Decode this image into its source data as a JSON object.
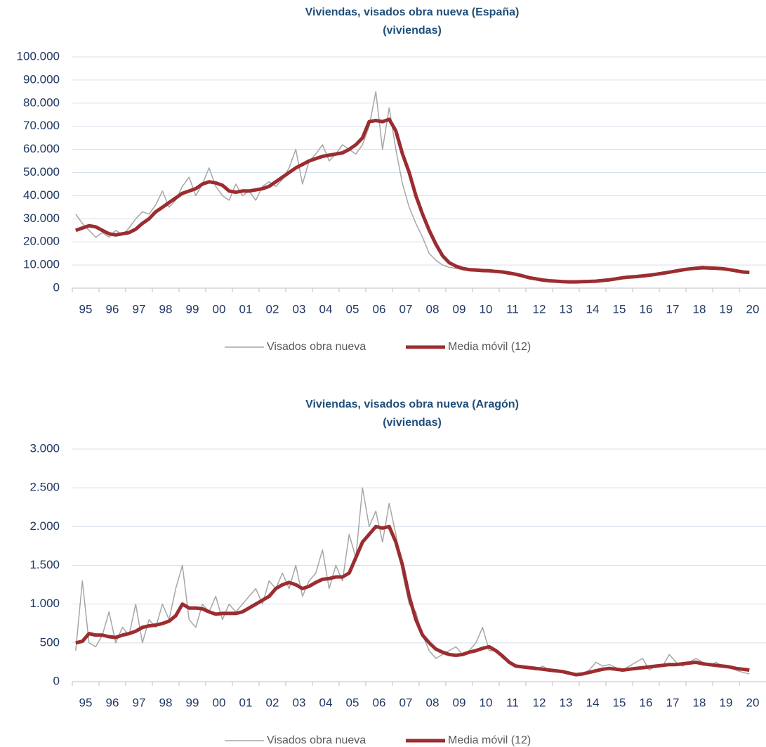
{
  "chart_data": [
    {
      "type": "line",
      "title": "Viviendas, visados obra nueva  (España)",
      "subtitle": "(viviendas)",
      "grid": true,
      "legend": "bottom",
      "ylim": [
        0,
        100000
      ],
      "yticks": [
        0,
        {
          "value": 10000,
          "label": "10.000"
        },
        {
          "value": 20000,
          "label": "20.000"
        },
        {
          "value": 30000,
          "label": "30.000"
        },
        {
          "value": 40000,
          "label": "40.000"
        },
        {
          "value": 50000,
          "label": "50.000"
        },
        {
          "value": 60000,
          "label": "60.000"
        },
        {
          "value": 70000,
          "label": "70.000"
        },
        {
          "value": 80000,
          "label": "80.000"
        },
        {
          "value": 90000,
          "label": "90.000"
        },
        {
          "value": 100000,
          "label": "100.000"
        }
      ],
      "categories": [
        "95",
        null,
        null,
        null,
        "96",
        null,
        null,
        null,
        "97",
        null,
        null,
        null,
        "98",
        null,
        null,
        null,
        "99",
        null,
        null,
        null,
        "00",
        null,
        null,
        null,
        "01",
        null,
        null,
        null,
        "02",
        null,
        null,
        null,
        "03",
        null,
        null,
        null,
        "04",
        null,
        null,
        null,
        "05",
        null,
        null,
        null,
        "06",
        null,
        null,
        null,
        "07",
        null,
        null,
        null,
        "08",
        null,
        null,
        null,
        "09",
        null,
        null,
        null,
        "10",
        null,
        null,
        null,
        "11",
        null,
        null,
        null,
        "12",
        null,
        null,
        null,
        "13",
        null,
        null,
        null,
        "14",
        null,
        null,
        null,
        "15",
        null,
        null,
        null,
        "16",
        null,
        null,
        null,
        "17",
        null,
        null,
        null,
        "18",
        null,
        null,
        null,
        "19",
        null,
        null,
        null,
        "20",
        null,
        null,
        null
      ],
      "series": [
        {
          "name": "Visados obra nueva",
          "color": "#a6a6a6",
          "values": [
            32000,
            28000,
            25000,
            22000,
            24000,
            22000,
            25000,
            23000,
            26000,
            30000,
            33000,
            32000,
            36000,
            42000,
            35000,
            38000,
            44000,
            48000,
            40000,
            45000,
            52000,
            44000,
            40000,
            38000,
            45000,
            40000,
            42000,
            38000,
            44000,
            46000,
            44000,
            47000,
            52000,
            60000,
            45000,
            55000,
            58000,
            62000,
            55000,
            58000,
            62000,
            60000,
            58000,
            62000,
            70000,
            85000,
            60000,
            78000,
            60000,
            45000,
            35000,
            28000,
            22000,
            15000,
            12000,
            10000,
            9000,
            8500,
            8000,
            8000,
            8000,
            7500,
            7500,
            7000,
            7000,
            6500,
            6000,
            5500,
            5000,
            4000,
            3500,
            3200,
            3000,
            2800,
            2700,
            2800,
            2900,
            3000,
            3200,
            3500,
            3800,
            4200,
            4500,
            5000,
            5200,
            5500,
            5800,
            6000,
            6500,
            7000,
            7500,
            8000,
            8500,
            9000,
            9500,
            9000,
            9000,
            8500,
            8000,
            7500,
            7000,
            6500,
            null,
            null
          ]
        },
        {
          "name": "Media móvil (12)",
          "color": "#9b2d30",
          "values": [
            25000,
            26000,
            27000,
            26500,
            25000,
            23500,
            23000,
            23500,
            24000,
            25500,
            28000,
            30000,
            33000,
            35000,
            37000,
            39000,
            41000,
            42000,
            43000,
            45000,
            46000,
            45500,
            44500,
            42000,
            41500,
            42000,
            42000,
            42500,
            43000,
            44000,
            46000,
            48000,
            50000,
            52000,
            53500,
            55000,
            56000,
            57000,
            57500,
            58000,
            58500,
            60000,
            62000,
            65000,
            72000,
            72500,
            72000,
            73000,
            68000,
            58000,
            50000,
            40000,
            32000,
            25000,
            19000,
            14000,
            11000,
            9500,
            8500,
            8000,
            7800,
            7600,
            7500,
            7200,
            7000,
            6500,
            6000,
            5300,
            4500,
            4000,
            3500,
            3200,
            3000,
            2800,
            2700,
            2700,
            2800,
            2900,
            3000,
            3300,
            3600,
            4000,
            4500,
            4800,
            5000,
            5300,
            5600,
            6000,
            6400,
            6900,
            7400,
            7900,
            8300,
            8600,
            8800,
            8700,
            8600,
            8400,
            8000,
            7500,
            7000,
            6800,
            null,
            null
          ]
        }
      ]
    },
    {
      "type": "line",
      "title": "Viviendas, visados obra nueva  (Aragón)",
      "subtitle": "(viviendas)",
      "grid": true,
      "legend": "bottom",
      "ylim": [
        0,
        3000
      ],
      "yticks": [
        0,
        500,
        {
          "value": 1000,
          "label": "1.000"
        },
        {
          "value": 1500,
          "label": "1.500"
        },
        {
          "value": 2000,
          "label": "2.000"
        },
        {
          "value": 2500,
          "label": "2.500"
        },
        {
          "value": 3000,
          "label": "3.000"
        }
      ],
      "categories": [
        "95",
        null,
        null,
        null,
        "96",
        null,
        null,
        null,
        "97",
        null,
        null,
        null,
        "98",
        null,
        null,
        null,
        "99",
        null,
        null,
        null,
        "00",
        null,
        null,
        null,
        "01",
        null,
        null,
        null,
        "02",
        null,
        null,
        null,
        "03",
        null,
        null,
        null,
        "04",
        null,
        null,
        null,
        "05",
        null,
        null,
        null,
        "06",
        null,
        null,
        null,
        "07",
        null,
        null,
        null,
        "08",
        null,
        null,
        null,
        "09",
        null,
        null,
        null,
        "10",
        null,
        null,
        null,
        "11",
        null,
        null,
        null,
        "12",
        null,
        null,
        null,
        "13",
        null,
        null,
        null,
        "14",
        null,
        null,
        null,
        "15",
        null,
        null,
        null,
        "16",
        null,
        null,
        null,
        "17",
        null,
        null,
        null,
        "18",
        null,
        null,
        null,
        "19",
        null,
        null,
        null,
        "20",
        null,
        null,
        null
      ],
      "series": [
        {
          "name": "Visados obra nueva",
          "color": "#a6a6a6",
          "values": [
            400,
            1300,
            500,
            450,
            600,
            900,
            500,
            700,
            600,
            1000,
            500,
            800,
            700,
            1000,
            800,
            1200,
            1500,
            800,
            700,
            1000,
            900,
            1100,
            800,
            1000,
            900,
            1000,
            1100,
            1200,
            1000,
            1300,
            1200,
            1400,
            1200,
            1500,
            1100,
            1300,
            1400,
            1700,
            1200,
            1500,
            1300,
            1900,
            1600,
            2500,
            2000,
            2200,
            1800,
            2300,
            1900,
            1400,
            1000,
            900,
            600,
            400,
            300,
            350,
            400,
            450,
            350,
            400,
            500,
            700,
            400,
            400,
            300,
            250,
            200,
            200,
            180,
            150,
            200,
            150,
            140,
            120,
            100,
            90,
            100,
            150,
            250,
            200,
            220,
            180,
            150,
            200,
            250,
            300,
            150,
            200,
            200,
            350,
            250,
            200,
            250,
            300,
            250,
            200,
            250,
            200,
            200,
            150,
            120,
            100,
            null,
            null
          ]
        },
        {
          "name": "Media móvil (12)",
          "color": "#9b2d30",
          "values": [
            500,
            520,
            620,
            600,
            600,
            580,
            570,
            600,
            620,
            650,
            700,
            720,
            730,
            750,
            780,
            850,
            1000,
            950,
            950,
            940,
            900,
            870,
            880,
            880,
            880,
            900,
            950,
            1000,
            1050,
            1100,
            1200,
            1250,
            1280,
            1250,
            1200,
            1230,
            1280,
            1320,
            1330,
            1350,
            1350,
            1400,
            1600,
            1800,
            1900,
            2000,
            1980,
            2000,
            1800,
            1500,
            1100,
            800,
            600,
            500,
            420,
            380,
            350,
            340,
            350,
            380,
            400,
            430,
            450,
            400,
            330,
            250,
            200,
            190,
            180,
            170,
            160,
            150,
            140,
            130,
            110,
            90,
            100,
            120,
            140,
            160,
            170,
            160,
            150,
            160,
            170,
            180,
            190,
            200,
            210,
            220,
            220,
            230,
            240,
            250,
            230,
            220,
            210,
            200,
            190,
            170,
            160,
            150,
            null,
            null
          ]
        }
      ]
    }
  ]
}
